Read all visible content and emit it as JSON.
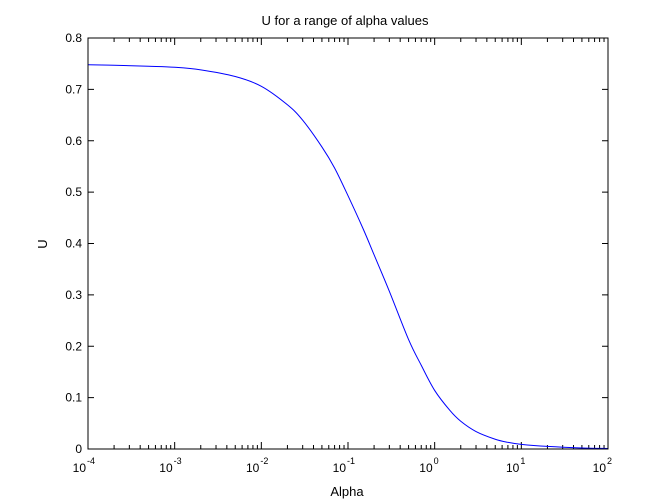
{
  "chart_data": {
    "type": "line",
    "title": "U for a range of alpha values",
    "xlabel": "Alpha",
    "ylabel": "U",
    "xscale": "log",
    "xlim": [
      0.0001,
      100
    ],
    "ylim": [
      0,
      0.8
    ],
    "grid": false,
    "x_ticks": [
      {
        "base": "10",
        "exp": "-4",
        "value": 0.0001
      },
      {
        "base": "10",
        "exp": "-3",
        "value": 0.001
      },
      {
        "base": "10",
        "exp": "-2",
        "value": 0.01
      },
      {
        "base": "10",
        "exp": "-1",
        "value": 0.1
      },
      {
        "base": "10",
        "exp": "0",
        "value": 1
      },
      {
        "base": "10",
        "exp": "1",
        "value": 10
      },
      {
        "base": "10",
        "exp": "2",
        "value": 100
      }
    ],
    "y_ticks": [
      "0",
      "0.1",
      "0.2",
      "0.3",
      "0.4",
      "0.5",
      "0.6",
      "0.7",
      "0.8"
    ],
    "series": [
      {
        "color": "#0000ff",
        "x": [
          0.0001,
          0.0002,
          0.0005,
          0.001,
          0.002,
          0.005,
          0.01,
          0.02,
          0.03,
          0.05,
          0.07,
          0.1,
          0.15,
          0.2,
          0.3,
          0.5,
          0.7,
          1,
          1.5,
          2,
          3,
          5,
          7,
          10,
          20,
          50,
          100
        ],
        "y": [
          0.748,
          0.747,
          0.745,
          0.743,
          0.738,
          0.725,
          0.706,
          0.67,
          0.64,
          0.588,
          0.547,
          0.493,
          0.428,
          0.378,
          0.307,
          0.213,
          0.163,
          0.114,
          0.075,
          0.054,
          0.034,
          0.019,
          0.013,
          0.009,
          0.005,
          0.002,
          0.001
        ]
      }
    ]
  }
}
